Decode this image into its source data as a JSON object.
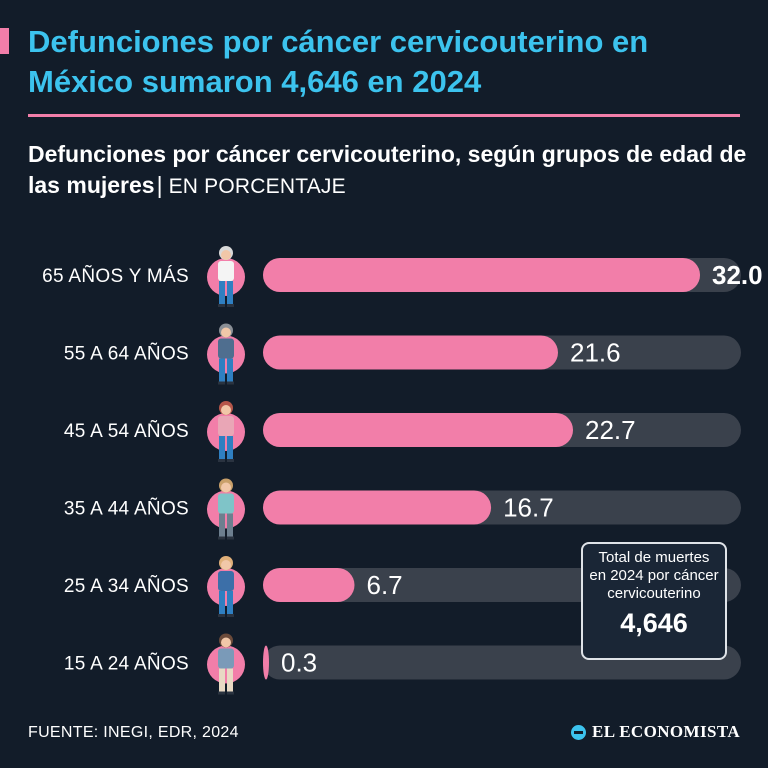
{
  "header": {
    "title": "Defunciones por cáncer cervicouterino en México sumaron 4,646 en 2024",
    "subtitle": "Defunciones por cáncer cervicouterino, según grupos de edad de las mujeres",
    "separator": "|",
    "unit": "EN PORCENTAJE"
  },
  "colors": {
    "accent_pink": "#f27ea9",
    "title_blue": "#3cc3ee",
    "track_gray": "#3a414c",
    "background": "#121c29"
  },
  "chart_data": {
    "type": "bar",
    "orientation": "horizontal",
    "title": "Defunciones por cáncer cervicouterino, según grupos de edad de las mujeres",
    "unit": "EN PORCENTAJE",
    "xlim": [
      0,
      35
    ],
    "categories": [
      "65 AÑOS Y MÁS",
      "55 A 64 AÑOS",
      "45 A 54 AÑOS",
      "35 A 44 AÑOS",
      "25 A 34 AÑOS",
      "15 A 24 AÑOS"
    ],
    "values": [
      32.0,
      21.6,
      22.7,
      16.7,
      6.7,
      0.3
    ],
    "value_labels": [
      "32.0",
      "21.6",
      "22.7",
      "16.7",
      "6.7",
      "0.3"
    ],
    "icons": [
      "woman-65-plus-icon",
      "woman-55-64-icon",
      "woman-45-54-icon",
      "woman-35-44-icon",
      "woman-25-34-icon",
      "woman-15-24-icon"
    ]
  },
  "total_box": {
    "text": "Total de muertes en 2024 por cáncer cervicouterino",
    "value": "4,646"
  },
  "footer": {
    "source": "FUENTE: INEGI, EDR, 2024",
    "brand": "EL ECONOMISTA"
  }
}
